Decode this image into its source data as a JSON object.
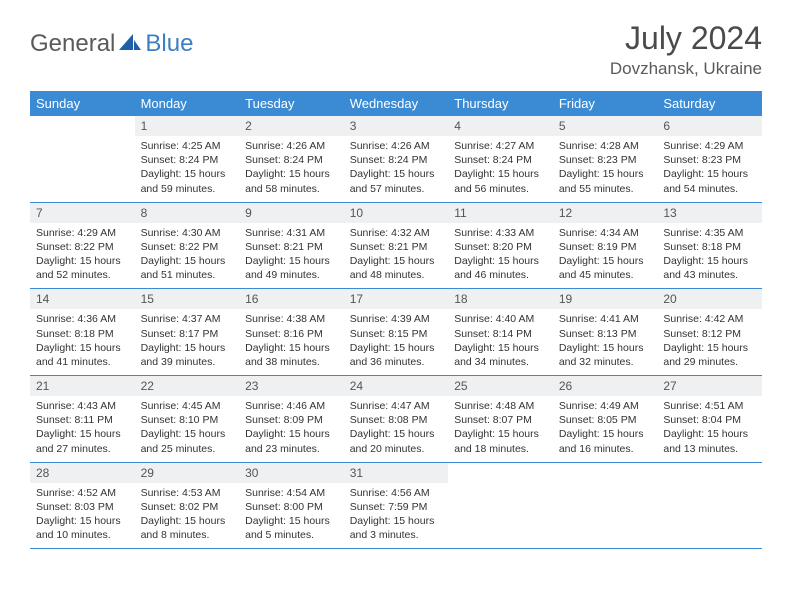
{
  "brand": {
    "text1": "General",
    "text2": "Blue"
  },
  "title": "July 2024",
  "location": "Dovzhansk, Ukraine",
  "colors": {
    "header_bg": "#3b8bd4",
    "header_text": "#ffffff",
    "daynum_bg": "#eef0f2",
    "border": "#3b8bd4",
    "logo_gray": "#5a5a5a",
    "logo_blue": "#3b7fc4"
  },
  "weekdays": [
    "Sunday",
    "Monday",
    "Tuesday",
    "Wednesday",
    "Thursday",
    "Friday",
    "Saturday"
  ],
  "weeks": [
    [
      {
        "day": "",
        "sunrise": "",
        "sunset": "",
        "daylight": ""
      },
      {
        "day": "1",
        "sunrise": "Sunrise: 4:25 AM",
        "sunset": "Sunset: 8:24 PM",
        "daylight": "Daylight: 15 hours and 59 minutes."
      },
      {
        "day": "2",
        "sunrise": "Sunrise: 4:26 AM",
        "sunset": "Sunset: 8:24 PM",
        "daylight": "Daylight: 15 hours and 58 minutes."
      },
      {
        "day": "3",
        "sunrise": "Sunrise: 4:26 AM",
        "sunset": "Sunset: 8:24 PM",
        "daylight": "Daylight: 15 hours and 57 minutes."
      },
      {
        "day": "4",
        "sunrise": "Sunrise: 4:27 AM",
        "sunset": "Sunset: 8:24 PM",
        "daylight": "Daylight: 15 hours and 56 minutes."
      },
      {
        "day": "5",
        "sunrise": "Sunrise: 4:28 AM",
        "sunset": "Sunset: 8:23 PM",
        "daylight": "Daylight: 15 hours and 55 minutes."
      },
      {
        "day": "6",
        "sunrise": "Sunrise: 4:29 AM",
        "sunset": "Sunset: 8:23 PM",
        "daylight": "Daylight: 15 hours and 54 minutes."
      }
    ],
    [
      {
        "day": "7",
        "sunrise": "Sunrise: 4:29 AM",
        "sunset": "Sunset: 8:22 PM",
        "daylight": "Daylight: 15 hours and 52 minutes."
      },
      {
        "day": "8",
        "sunrise": "Sunrise: 4:30 AM",
        "sunset": "Sunset: 8:22 PM",
        "daylight": "Daylight: 15 hours and 51 minutes."
      },
      {
        "day": "9",
        "sunrise": "Sunrise: 4:31 AM",
        "sunset": "Sunset: 8:21 PM",
        "daylight": "Daylight: 15 hours and 49 minutes."
      },
      {
        "day": "10",
        "sunrise": "Sunrise: 4:32 AM",
        "sunset": "Sunset: 8:21 PM",
        "daylight": "Daylight: 15 hours and 48 minutes."
      },
      {
        "day": "11",
        "sunrise": "Sunrise: 4:33 AM",
        "sunset": "Sunset: 8:20 PM",
        "daylight": "Daylight: 15 hours and 46 minutes."
      },
      {
        "day": "12",
        "sunrise": "Sunrise: 4:34 AM",
        "sunset": "Sunset: 8:19 PM",
        "daylight": "Daylight: 15 hours and 45 minutes."
      },
      {
        "day": "13",
        "sunrise": "Sunrise: 4:35 AM",
        "sunset": "Sunset: 8:18 PM",
        "daylight": "Daylight: 15 hours and 43 minutes."
      }
    ],
    [
      {
        "day": "14",
        "sunrise": "Sunrise: 4:36 AM",
        "sunset": "Sunset: 8:18 PM",
        "daylight": "Daylight: 15 hours and 41 minutes."
      },
      {
        "day": "15",
        "sunrise": "Sunrise: 4:37 AM",
        "sunset": "Sunset: 8:17 PM",
        "daylight": "Daylight: 15 hours and 39 minutes."
      },
      {
        "day": "16",
        "sunrise": "Sunrise: 4:38 AM",
        "sunset": "Sunset: 8:16 PM",
        "daylight": "Daylight: 15 hours and 38 minutes."
      },
      {
        "day": "17",
        "sunrise": "Sunrise: 4:39 AM",
        "sunset": "Sunset: 8:15 PM",
        "daylight": "Daylight: 15 hours and 36 minutes."
      },
      {
        "day": "18",
        "sunrise": "Sunrise: 4:40 AM",
        "sunset": "Sunset: 8:14 PM",
        "daylight": "Daylight: 15 hours and 34 minutes."
      },
      {
        "day": "19",
        "sunrise": "Sunrise: 4:41 AM",
        "sunset": "Sunset: 8:13 PM",
        "daylight": "Daylight: 15 hours and 32 minutes."
      },
      {
        "day": "20",
        "sunrise": "Sunrise: 4:42 AM",
        "sunset": "Sunset: 8:12 PM",
        "daylight": "Daylight: 15 hours and 29 minutes."
      }
    ],
    [
      {
        "day": "21",
        "sunrise": "Sunrise: 4:43 AM",
        "sunset": "Sunset: 8:11 PM",
        "daylight": "Daylight: 15 hours and 27 minutes."
      },
      {
        "day": "22",
        "sunrise": "Sunrise: 4:45 AM",
        "sunset": "Sunset: 8:10 PM",
        "daylight": "Daylight: 15 hours and 25 minutes."
      },
      {
        "day": "23",
        "sunrise": "Sunrise: 4:46 AM",
        "sunset": "Sunset: 8:09 PM",
        "daylight": "Daylight: 15 hours and 23 minutes."
      },
      {
        "day": "24",
        "sunrise": "Sunrise: 4:47 AM",
        "sunset": "Sunset: 8:08 PM",
        "daylight": "Daylight: 15 hours and 20 minutes."
      },
      {
        "day": "25",
        "sunrise": "Sunrise: 4:48 AM",
        "sunset": "Sunset: 8:07 PM",
        "daylight": "Daylight: 15 hours and 18 minutes."
      },
      {
        "day": "26",
        "sunrise": "Sunrise: 4:49 AM",
        "sunset": "Sunset: 8:05 PM",
        "daylight": "Daylight: 15 hours and 16 minutes."
      },
      {
        "day": "27",
        "sunrise": "Sunrise: 4:51 AM",
        "sunset": "Sunset: 8:04 PM",
        "daylight": "Daylight: 15 hours and 13 minutes."
      }
    ],
    [
      {
        "day": "28",
        "sunrise": "Sunrise: 4:52 AM",
        "sunset": "Sunset: 8:03 PM",
        "daylight": "Daylight: 15 hours and 10 minutes."
      },
      {
        "day": "29",
        "sunrise": "Sunrise: 4:53 AM",
        "sunset": "Sunset: 8:02 PM",
        "daylight": "Daylight: 15 hours and 8 minutes."
      },
      {
        "day": "30",
        "sunrise": "Sunrise: 4:54 AM",
        "sunset": "Sunset: 8:00 PM",
        "daylight": "Daylight: 15 hours and 5 minutes."
      },
      {
        "day": "31",
        "sunrise": "Sunrise: 4:56 AM",
        "sunset": "Sunset: 7:59 PM",
        "daylight": "Daylight: 15 hours and 3 minutes."
      },
      {
        "day": "",
        "sunrise": "",
        "sunset": "",
        "daylight": ""
      },
      {
        "day": "",
        "sunrise": "",
        "sunset": "",
        "daylight": ""
      },
      {
        "day": "",
        "sunrise": "",
        "sunset": "",
        "daylight": ""
      }
    ]
  ]
}
